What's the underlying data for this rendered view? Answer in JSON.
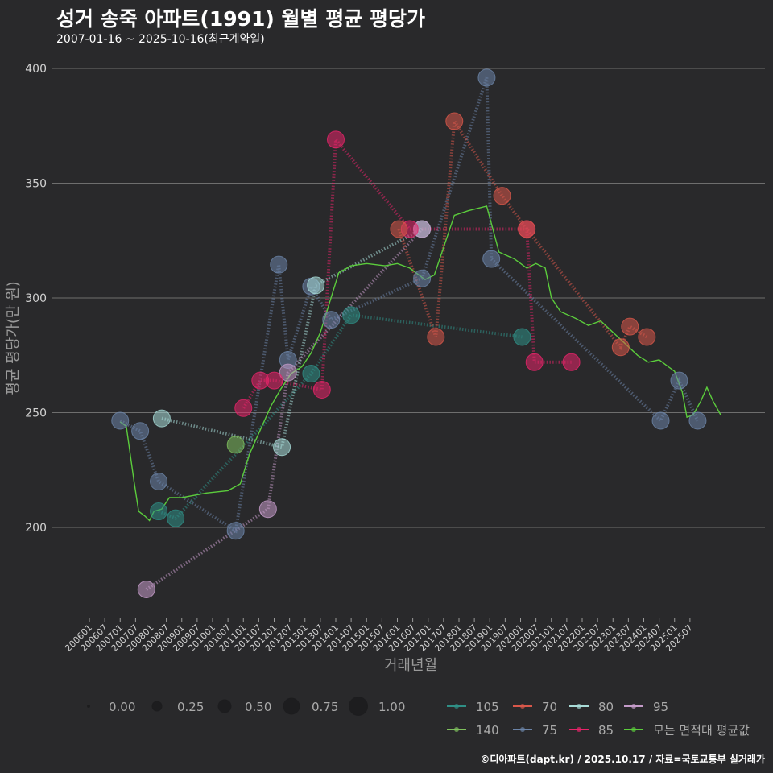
{
  "chart_data": {
    "type": "line",
    "title": "성거 송죽 아파트(1991) 월별 평균 평당가",
    "subtitle": "2007-01-16 ~ 2025-10-16(최근계약일)",
    "xlabel": "거래년월",
    "ylabel": "평균 평당가(만 원)",
    "ylim": [
      163,
      403
    ],
    "y_ticks": [
      200,
      250,
      300,
      350,
      400
    ],
    "x_ticks": [
      "200601",
      "200607",
      "200701",
      "200707",
      "200801",
      "200807",
      "200901",
      "200907",
      "201001",
      "201007",
      "201101",
      "201107",
      "201201",
      "201207",
      "201301",
      "201307",
      "201401",
      "201407",
      "201501",
      "201507",
      "201601",
      "201607",
      "201701",
      "201707",
      "201801",
      "201807",
      "201901",
      "201907",
      "202001",
      "202007",
      "202101",
      "202107",
      "202201",
      "202207",
      "202301",
      "202307",
      "202401",
      "202407",
      "202501",
      "202507"
    ],
    "size_legend": {
      "title": "",
      "values": [
        "0.00",
        "0.25",
        "0.50",
        "0.75",
        "1.00"
      ]
    },
    "color_legend": [
      {
        "name": "105",
        "color": "#2f8f86"
      },
      {
        "name": "70",
        "color": "#d9574a"
      },
      {
        "name": "80",
        "color": "#a8dcd8"
      },
      {
        "name": "95",
        "color": "#c49bc9"
      },
      {
        "name": "140",
        "color": "#7fc05e"
      },
      {
        "name": "75",
        "color": "#6b84a8"
      },
      {
        "name": "85",
        "color": "#e8246a"
      },
      {
        "name": "모든 면적대 평균값",
        "color": "#5bcc3c"
      }
    ],
    "series": [
      {
        "name": "75",
        "color": "#6b84a8",
        "points": [
          {
            "x": 2007.0,
            "y": 246.5
          },
          {
            "x": 2007.65,
            "y": 242
          },
          {
            "x": 2008.25,
            "y": 220
          },
          {
            "x": 2010.75,
            "y": 198.5
          },
          {
            "x": 2012.15,
            "y": 314.5
          },
          {
            "x": 2012.45,
            "y": 273
          },
          {
            "x": 2013.2,
            "y": 305
          },
          {
            "x": 2013.85,
            "y": 290.5
          },
          {
            "x": 2016.8,
            "y": 308.5
          },
          {
            "x": 2018.9,
            "y": 396
          },
          {
            "x": 2019.05,
            "y": 317
          },
          {
            "x": 2024.55,
            "y": 246.5
          },
          {
            "x": 2025.15,
            "y": 264
          },
          {
            "x": 2025.75,
            "y": 246.5
          }
        ]
      },
      {
        "name": "105",
        "color": "#2f8f86",
        "points": [
          {
            "x": 2008.25,
            "y": 207
          },
          {
            "x": 2008.8,
            "y": 204
          },
          {
            "x": 2013.2,
            "y": 267
          },
          {
            "x": 2014.5,
            "y": 292.5
          },
          {
            "x": 2020.05,
            "y": 283
          }
        ]
      },
      {
        "name": "80",
        "color": "#a8dcd8",
        "points": [
          {
            "x": 2008.35,
            "y": 247.5
          },
          {
            "x": 2012.25,
            "y": 235
          },
          {
            "x": 2013.35,
            "y": 305.5
          },
          {
            "x": 2016.8,
            "y": 330
          }
        ]
      },
      {
        "name": "95",
        "color": "#c49bc9",
        "points": [
          {
            "x": 2007.85,
            "y": 173
          },
          {
            "x": 2011.8,
            "y": 208
          },
          {
            "x": 2012.45,
            "y": 267.5
          },
          {
            "x": 2016.8,
            "y": 330
          }
        ]
      },
      {
        "name": "140",
        "color": "#7fc05e",
        "points": [
          {
            "x": 2010.75,
            "y": 236
          }
        ]
      },
      {
        "name": "85",
        "color": "#e8246a",
        "points": [
          {
            "x": 2011.0,
            "y": 252
          },
          {
            "x": 2011.55,
            "y": 264
          },
          {
            "x": 2012.0,
            "y": 264
          },
          {
            "x": 2013.55,
            "y": 260
          },
          {
            "x": 2014.0,
            "y": 369
          },
          {
            "x": 2016.4,
            "y": 330
          },
          {
            "x": 2020.2,
            "y": 330
          },
          {
            "x": 2020.45,
            "y": 272
          },
          {
            "x": 2021.65,
            "y": 272
          }
        ]
      },
      {
        "name": "70",
        "color": "#d9574a",
        "points": [
          {
            "x": 2016.05,
            "y": 330
          },
          {
            "x": 2017.25,
            "y": 283
          },
          {
            "x": 2017.85,
            "y": 377
          },
          {
            "x": 2019.4,
            "y": 344.5
          },
          {
            "x": 2020.2,
            "y": 330
          },
          {
            "x": 2023.25,
            "y": 278.5
          },
          {
            "x": 2023.55,
            "y": 287.5
          },
          {
            "x": 2024.1,
            "y": 283
          }
        ]
      },
      {
        "name": "모든 면적대 평균값",
        "color": "#5bcc3c",
        "points": [
          {
            "x": 2007.0,
            "y": 246
          },
          {
            "x": 2007.2,
            "y": 244
          },
          {
            "x": 2007.45,
            "y": 220
          },
          {
            "x": 2007.6,
            "y": 207
          },
          {
            "x": 2007.8,
            "y": 205
          },
          {
            "x": 2007.95,
            "y": 203
          },
          {
            "x": 2008.1,
            "y": 207
          },
          {
            "x": 2008.35,
            "y": 208
          },
          {
            "x": 2008.6,
            "y": 213
          },
          {
            "x": 2009.0,
            "y": 213
          },
          {
            "x": 2009.8,
            "y": 215
          },
          {
            "x": 2010.5,
            "y": 216
          },
          {
            "x": 2010.9,
            "y": 219
          },
          {
            "x": 2011.2,
            "y": 232
          },
          {
            "x": 2011.6,
            "y": 244
          },
          {
            "x": 2011.9,
            "y": 253
          },
          {
            "x": 2012.2,
            "y": 260
          },
          {
            "x": 2012.55,
            "y": 267
          },
          {
            "x": 2012.9,
            "y": 270
          },
          {
            "x": 2013.2,
            "y": 276
          },
          {
            "x": 2013.5,
            "y": 285
          },
          {
            "x": 2013.8,
            "y": 298
          },
          {
            "x": 2014.1,
            "y": 311
          },
          {
            "x": 2014.5,
            "y": 314
          },
          {
            "x": 2015.0,
            "y": 315
          },
          {
            "x": 2015.6,
            "y": 314
          },
          {
            "x": 2016.0,
            "y": 315
          },
          {
            "x": 2016.4,
            "y": 313
          },
          {
            "x": 2016.9,
            "y": 308
          },
          {
            "x": 2017.2,
            "y": 310
          },
          {
            "x": 2017.5,
            "y": 322
          },
          {
            "x": 2017.85,
            "y": 336
          },
          {
            "x": 2018.3,
            "y": 338
          },
          {
            "x": 2018.9,
            "y": 340
          },
          {
            "x": 2019.1,
            "y": 330
          },
          {
            "x": 2019.3,
            "y": 320
          },
          {
            "x": 2019.8,
            "y": 317
          },
          {
            "x": 2020.2,
            "y": 313
          },
          {
            "x": 2020.5,
            "y": 315
          },
          {
            "x": 2020.8,
            "y": 313
          },
          {
            "x": 2021.0,
            "y": 300
          },
          {
            "x": 2021.3,
            "y": 294
          },
          {
            "x": 2021.8,
            "y": 291
          },
          {
            "x": 2022.2,
            "y": 288
          },
          {
            "x": 2022.6,
            "y": 290
          },
          {
            "x": 2023.0,
            "y": 285
          },
          {
            "x": 2023.4,
            "y": 280
          },
          {
            "x": 2023.8,
            "y": 275
          },
          {
            "x": 2024.15,
            "y": 272
          },
          {
            "x": 2024.5,
            "y": 273
          },
          {
            "x": 2024.8,
            "y": 270
          },
          {
            "x": 2025.0,
            "y": 268
          },
          {
            "x": 2025.25,
            "y": 259
          },
          {
            "x": 2025.4,
            "y": 248
          },
          {
            "x": 2025.6,
            "y": 249
          },
          {
            "x": 2025.85,
            "y": 255
          },
          {
            "x": 2026.05,
            "y": 261
          },
          {
            "x": 2026.25,
            "y": 255
          },
          {
            "x": 2026.5,
            "y": 249
          }
        ]
      }
    ]
  },
  "caption": "©디아파트(dapt.kr) / 2025.10.17 / 자료=국토교통부 실거래가"
}
